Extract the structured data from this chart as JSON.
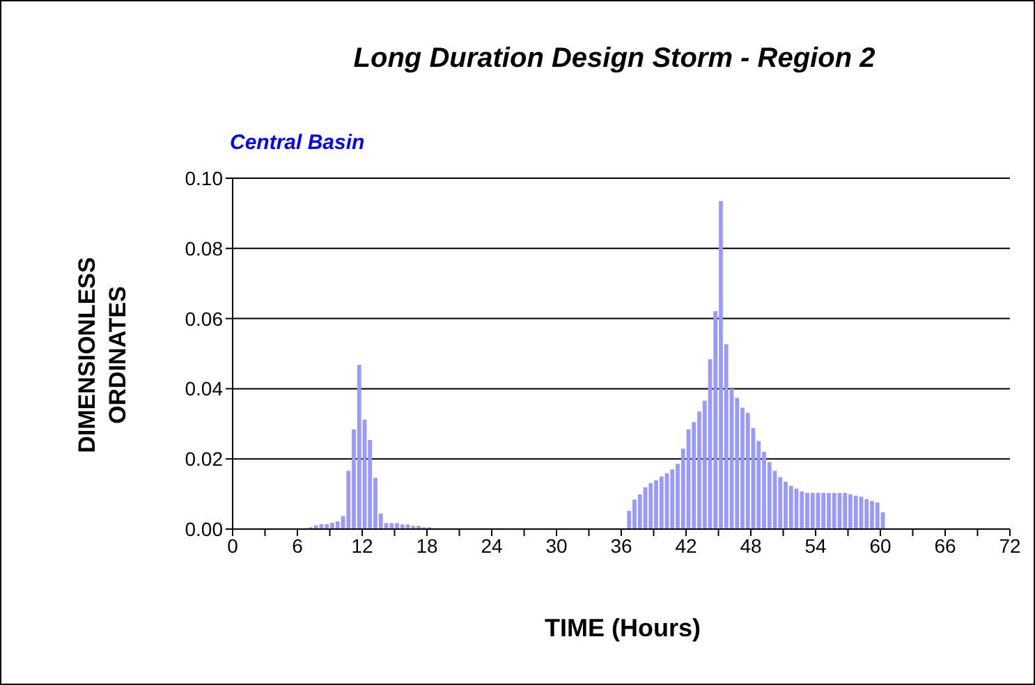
{
  "chart_data": {
    "type": "histogram",
    "title": "Long Duration Design Storm - Region 2",
    "subtitle": "Central Basin",
    "xlabel": "TIME (Hours)",
    "ylabel": "DIMENSIONLESS ORDINATES",
    "bins": [
      7,
      7.5,
      8,
      8.5,
      9,
      9.5,
      10,
      10.5,
      11,
      11.5,
      12,
      12.5,
      13,
      13.5,
      14,
      14.5,
      15,
      15.5,
      16,
      16.5,
      17,
      17.5,
      18,
      18.5,
      19,
      19.5,
      20,
      20.5,
      21,
      21.5,
      22,
      22.5,
      23,
      23.5,
      24,
      24.5,
      25,
      25.5,
      26,
      26.5,
      27,
      27.5,
      28,
      28.5,
      29,
      29.5,
      30,
      30.5,
      31,
      31.5,
      32,
      32.5,
      33,
      33.5,
      34,
      34.5,
      35,
      35.5,
      36,
      36.5,
      37,
      37.5,
      38,
      38.5,
      39,
      39.5,
      40,
      40.5,
      41,
      41.5,
      42,
      42.5,
      43,
      43.5,
      44,
      44.5,
      45,
      45.5,
      46,
      46.5,
      47,
      47.5,
      48,
      48.5,
      49,
      49.5,
      50,
      50.5,
      51,
      51.5,
      52,
      52.5,
      53,
      53.5,
      54,
      54.5,
      55,
      55.5,
      56,
      56.5,
      57,
      57.5,
      58,
      58.5,
      59,
      59.5,
      60,
      60.5
    ],
    "values": [
      0.0005,
      0.001,
      0.0014,
      0.0014,
      0.0018,
      0.0022,
      0.0037,
      0.0166,
      0.0284,
      0.0468,
      0.0312,
      0.0254,
      0.0146,
      0.0044,
      0.0017,
      0.0017,
      0.0017,
      0.0013,
      0.0013,
      0.0009,
      0.0009,
      0.0005,
      0.0005,
      0,
      0,
      0,
      0,
      0,
      0,
      0,
      0,
      0,
      0,
      0,
      0,
      0,
      0,
      0,
      0,
      0,
      0,
      0,
      0,
      0,
      0,
      0,
      0,
      0,
      0,
      0,
      0,
      0,
      0,
      0,
      0,
      0,
      0,
      0,
      0,
      0.0052,
      0.0084,
      0.0099,
      0.0119,
      0.0131,
      0.0139,
      0.015,
      0.0159,
      0.017,
      0.0186,
      0.0229,
      0.0284,
      0.0305,
      0.0335,
      0.0366,
      0.0484,
      0.0621,
      0.0935,
      0.0527,
      0.04,
      0.0374,
      0.0346,
      0.0331,
      0.0288,
      0.0251,
      0.022,
      0.0191,
      0.0166,
      0.0148,
      0.0135,
      0.0123,
      0.0115,
      0.0107,
      0.0103,
      0.0103,
      0.0103,
      0.0103,
      0.0103,
      0.0103,
      0.0103,
      0.0103,
      0.0099,
      0.0095,
      0.0092,
      0.0085,
      0.008,
      0.0076,
      0.0048
    ],
    "color": "#9999ff",
    "xlim": [
      0,
      72
    ],
    "xticks": [
      0,
      {
        "value": 3,
        "label": null
      },
      6,
      {
        "value": 9,
        "label": null
      },
      12,
      {
        "value": 15,
        "label": null
      },
      18,
      {
        "value": 21,
        "label": null
      },
      24,
      {
        "value": 27,
        "label": null
      },
      30,
      {
        "value": 33,
        "label": null
      },
      36,
      {
        "value": 39,
        "label": null
      },
      42,
      {
        "value": 45,
        "label": null
      },
      48,
      {
        "value": 51,
        "label": null
      },
      54,
      {
        "value": 57,
        "label": null
      },
      60,
      {
        "value": 63,
        "label": null
      },
      66,
      {
        "value": 69,
        "label": null
      },
      72
    ],
    "ylim": [
      0,
      0.1
    ],
    "yticks": [
      {
        "value": 0,
        "label": "0.00"
      },
      {
        "value": 0.02,
        "label": "0.02"
      },
      {
        "value": 0.04,
        "label": "0.04"
      },
      {
        "value": 0.06,
        "label": "0.06"
      },
      {
        "value": 0.08,
        "label": "0.08"
      },
      {
        "value": 0.1,
        "label": "0.10"
      }
    ],
    "grid": "y"
  }
}
